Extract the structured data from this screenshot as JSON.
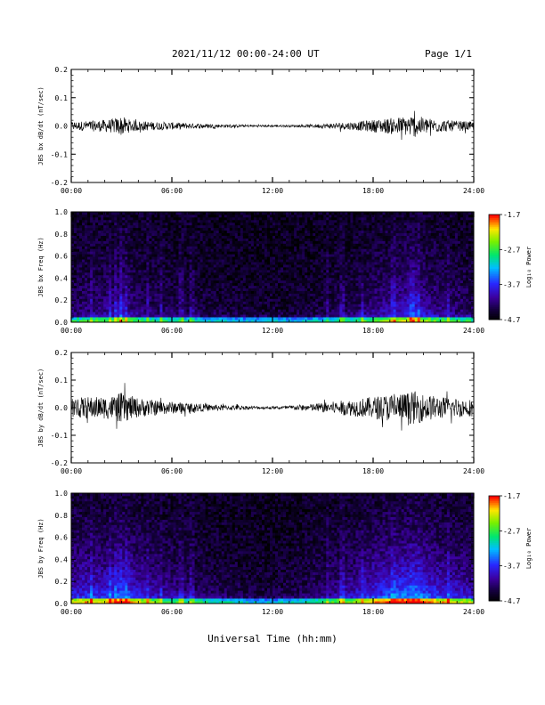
{
  "header": {
    "title": "2021/11/12  00:00-24:00 UT",
    "page": "Page 1/1"
  },
  "xlabel": "Universal Time (hh:mm)",
  "x_ticks": [
    "00:00",
    "06:00",
    "12:00",
    "18:00",
    "24:00"
  ],
  "colorbar": {
    "label": "Log₁₀ Power",
    "ticks": [
      "-1.7",
      "-2.7",
      "-3.7",
      "-4.7"
    ]
  },
  "chart_data": [
    {
      "type": "line",
      "ylabel": "JBS bx dB/dt (nT/sec)",
      "xlim": [
        0,
        24
      ],
      "ylim": [
        -0.2,
        0.2
      ],
      "y_ticks": [
        "0.2",
        "0.1",
        "0.0",
        "-0.1",
        "-0.2"
      ],
      "series": [
        {
          "x": [
            0,
            1,
            2,
            2.5,
            3,
            3.5,
            4,
            5,
            6,
            7,
            8,
            9,
            10,
            11,
            12,
            13,
            14,
            15,
            16,
            17,
            18,
            19,
            20,
            20.5,
            21,
            22,
            23,
            24
          ],
          "amplitude": [
            0.015,
            0.018,
            0.022,
            0.025,
            0.035,
            0.022,
            0.018,
            0.015,
            0.013,
            0.01,
            0.008,
            0.006,
            0.005,
            0.004,
            0.004,
            0.004,
            0.005,
            0.008,
            0.012,
            0.015,
            0.022,
            0.028,
            0.035,
            0.04,
            0.03,
            0.022,
            0.018,
            0.015
          ]
        }
      ]
    },
    {
      "type": "heatmap",
      "ylabel": "JBS bx Freq (Hz)",
      "xlim": [
        0,
        24
      ],
      "ylim": [
        0.0,
        1.0
      ],
      "y_ticks": [
        "1.0",
        "0.8",
        "0.6",
        "0.4",
        "0.2",
        "0.0"
      ],
      "zlim": [
        -4.7,
        -1.7
      ]
    },
    {
      "type": "line",
      "ylabel": "JBS by dB/dt (nT/sec)",
      "xlim": [
        0,
        24
      ],
      "ylim": [
        -0.2,
        0.2
      ],
      "y_ticks": [
        "0.2",
        "0.1",
        "0.0",
        "-0.1",
        "-0.2"
      ],
      "series": [
        {
          "x": [
            0,
            1,
            2,
            2.5,
            3,
            3.5,
            4,
            5,
            6,
            7,
            8,
            9,
            10,
            11,
            12,
            13,
            14,
            15,
            16,
            17,
            18,
            19,
            20,
            20.5,
            21,
            22,
            23,
            24
          ],
          "amplitude": [
            0.035,
            0.04,
            0.04,
            0.045,
            0.055,
            0.045,
            0.035,
            0.028,
            0.022,
            0.018,
            0.013,
            0.01,
            0.008,
            0.006,
            0.005,
            0.008,
            0.012,
            0.018,
            0.025,
            0.032,
            0.04,
            0.05,
            0.055,
            0.06,
            0.05,
            0.04,
            0.035,
            0.03
          ]
        }
      ]
    },
    {
      "type": "heatmap",
      "ylabel": "JBS by Freq (Hz)",
      "xlim": [
        0,
        24
      ],
      "ylim": [
        0.0,
        1.0
      ],
      "y_ticks": [
        "1.0",
        "0.8",
        "0.6",
        "0.4",
        "0.2",
        "0.0"
      ],
      "zlim": [
        -4.7,
        -1.7
      ]
    }
  ]
}
